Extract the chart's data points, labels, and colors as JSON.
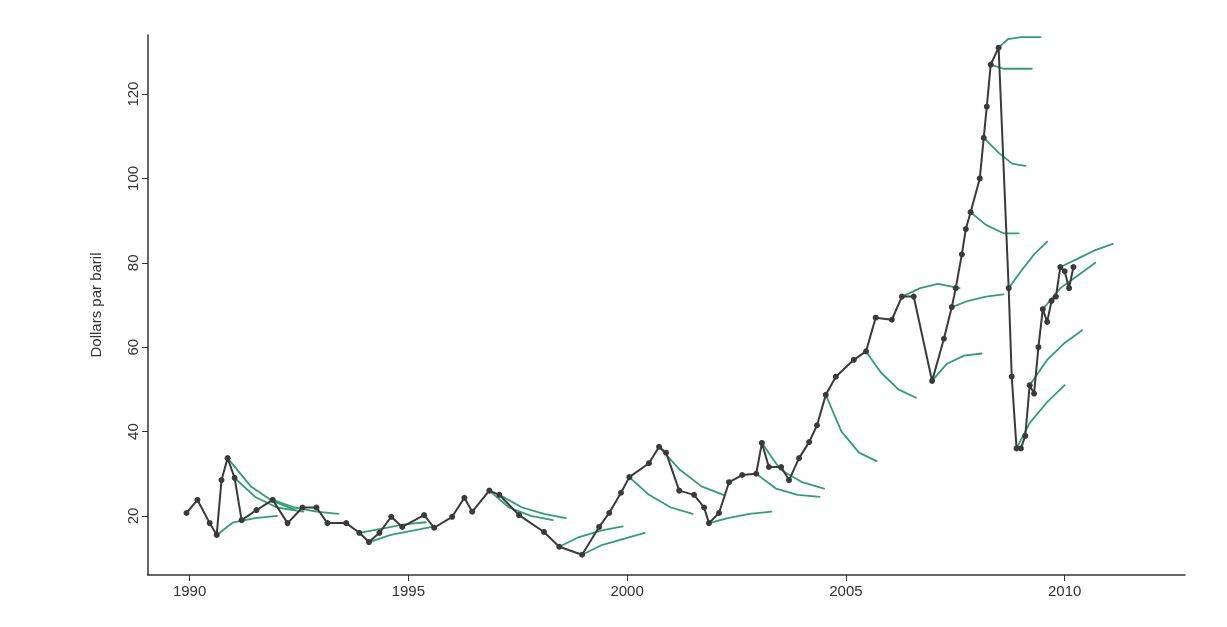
{
  "chart_data": {
    "type": "line",
    "ylabel": "Dollars par baril",
    "xlim": [
      1989.05,
      2012.75
    ],
    "xticks": [
      1990,
      1995,
      2000,
      2005,
      2010
    ],
    "ylim": [
      6,
      134
    ],
    "yticks": [
      20,
      40,
      60,
      80,
      100,
      120
    ],
    "grid": false,
    "line_style": "solid",
    "series": [
      {
        "color": "#3a3a3a",
        "marker": "circle",
        "x": [
          1989.93,
          1990.18,
          1990.46,
          1990.62,
          1990.73,
          1990.87,
          1991.03,
          1991.19,
          1991.53,
          1991.9,
          1992.24,
          1992.58,
          1992.9,
          1993.15,
          1993.58,
          1993.88,
          1994.1,
          1994.34,
          1994.61,
          1994.86,
          1995.36,
          1995.59,
          1996.0,
          1996.28,
          1996.46,
          1996.85,
          1997.08,
          1997.53,
          1998.1,
          1998.45,
          1998.97,
          1999.36,
          1999.59,
          1999.86,
          2000.05,
          2000.5,
          2000.73,
          2000.89,
          2001.19,
          2001.53,
          2001.76,
          2001.87,
          2002.1,
          2002.33,
          2002.63,
          2002.95,
          2003.08,
          2003.24,
          2003.52,
          2003.7,
          2003.93,
          2004.16,
          2004.34,
          2004.54,
          2004.77,
          2005.18,
          2005.46,
          2005.68,
          2006.05,
          2006.28,
          2006.55,
          2006.97,
          2007.24,
          2007.42,
          2007.51,
          2007.65,
          2007.74,
          2007.85,
          2008.06,
          2008.15,
          2008.22,
          2008.31,
          2008.49,
          2008.72,
          2008.79,
          2008.9,
          2009.0,
          2009.1,
          2009.2,
          2009.3,
          2009.4,
          2009.5,
          2009.6,
          2009.7,
          2009.8,
          2009.9,
          2010.0,
          2010.1,
          2010.2
        ],
        "values": [
          20.7,
          23.8,
          18.3,
          15.5,
          28.5,
          33.7,
          29,
          19,
          21.4,
          23.8,
          18.3,
          22,
          22,
          18.3,
          18.3,
          16,
          13.8,
          16,
          19.8,
          17.4,
          20.2,
          17.2,
          19.8,
          24.3,
          21,
          26,
          25,
          20.2,
          16.2,
          12.7,
          10.8,
          17.4,
          20.7,
          25.5,
          29.2,
          32.5,
          36.4,
          35,
          26,
          25,
          22,
          18.3,
          20.7,
          28,
          29.7,
          30,
          37.3,
          31.6,
          31.6,
          28.5,
          33.7,
          37.5,
          41.5,
          48.7,
          53,
          57,
          59,
          67,
          66.5,
          72,
          72,
          52,
          62,
          69.5,
          74,
          82,
          88,
          92,
          100,
          109.6,
          117,
          127,
          131,
          74,
          53,
          36,
          36,
          39,
          51,
          49,
          60,
          69,
          66,
          71,
          72,
          79,
          78,
          74,
          79
        ]
      },
      {
        "color": "#2e9e7a",
        "marker": "none",
        "x": [
          1990.87,
          1991.4,
          1991.9,
          1992.4
        ],
        "values": [
          33.7,
          27,
          23.5,
          21.5
        ]
      },
      {
        "color": "#2e9e7a",
        "marker": "none",
        "x": [
          1991.03,
          1991.5,
          1992,
          1992.6
        ],
        "values": [
          29,
          24.5,
          22,
          21
        ]
      },
      {
        "color": "#2e9e7a",
        "marker": "none",
        "x": [
          1990.62,
          1991,
          1991.5,
          1992
        ],
        "values": [
          15.5,
          18.5,
          19.5,
          20
        ]
      },
      {
        "color": "#2e9e7a",
        "marker": "none",
        "x": [
          1991.9,
          1992.4,
          1992.9,
          1993.4
        ],
        "values": [
          23.8,
          22,
          21,
          20.5
        ]
      },
      {
        "color": "#2e9e7a",
        "marker": "none",
        "x": [
          1993.88,
          1994.4,
          1994.9,
          1995.4
        ],
        "values": [
          16,
          17,
          18,
          18.5
        ]
      },
      {
        "color": "#2e9e7a",
        "marker": "none",
        "x": [
          1994.1,
          1994.6,
          1995.1,
          1995.6
        ],
        "values": [
          13.8,
          15.5,
          16.5,
          17.5
        ]
      },
      {
        "color": "#2e9e7a",
        "marker": "none",
        "x": [
          1996.85,
          1997.3,
          1997.8,
          1998.3
        ],
        "values": [
          26,
          22,
          20,
          19
        ]
      },
      {
        "color": "#2e9e7a",
        "marker": "none",
        "x": [
          1997.08,
          1997.6,
          1998.1,
          1998.6
        ],
        "values": [
          25,
          22,
          20.5,
          19.5
        ]
      },
      {
        "color": "#2e9e7a",
        "marker": "none",
        "x": [
          1998.45,
          1998.9,
          1999.4,
          1999.9
        ],
        "values": [
          12.7,
          15,
          16.5,
          17.5
        ]
      },
      {
        "color": "#2e9e7a",
        "marker": "none",
        "x": [
          1998.97,
          1999.4,
          1999.9,
          2000.4
        ],
        "values": [
          10.8,
          13,
          14.5,
          16
        ]
      },
      {
        "color": "#2e9e7a",
        "marker": "none",
        "x": [
          2000.05,
          2000.5,
          2001,
          2001.5
        ],
        "values": [
          29.2,
          25,
          22,
          20.5
        ]
      },
      {
        "color": "#2e9e7a",
        "marker": "none",
        "x": [
          2000.73,
          2001.2,
          2001.7,
          2002.2
        ],
        "values": [
          36.4,
          31,
          27,
          25
        ]
      },
      {
        "color": "#2e9e7a",
        "marker": "none",
        "x": [
          2001.87,
          2002.3,
          2002.8,
          2003.3
        ],
        "values": [
          18.3,
          19.5,
          20.5,
          21
        ]
      },
      {
        "color": "#2e9e7a",
        "marker": "none",
        "x": [
          2002.95,
          2003.4,
          2003.9,
          2004.4
        ],
        "values": [
          30,
          26.5,
          25,
          24.5
        ]
      },
      {
        "color": "#2e9e7a",
        "marker": "none",
        "x": [
          2003.08,
          2003.5,
          2004,
          2004.5
        ],
        "values": [
          37.3,
          31,
          28,
          26.5
        ]
      },
      {
        "color": "#2e9e7a",
        "marker": "none",
        "x": [
          2004.54,
          2004.9,
          2005.3,
          2005.7
        ],
        "values": [
          48.7,
          40,
          35,
          33
        ]
      },
      {
        "color": "#2e9e7a",
        "marker": "none",
        "x": [
          2005.46,
          2005.8,
          2006.2,
          2006.6
        ],
        "values": [
          59,
          54,
          50,
          48
        ]
      },
      {
        "color": "#2e9e7a",
        "marker": "none",
        "x": [
          2006.28,
          2006.7,
          2007.1,
          2007.6
        ],
        "values": [
          72,
          74,
          75,
          74
        ]
      },
      {
        "color": "#2e9e7a",
        "marker": "none",
        "x": [
          2006.97,
          2007.3,
          2007.7,
          2008.1
        ],
        "values": [
          52,
          56,
          58,
          58.5
        ]
      },
      {
        "color": "#2e9e7a",
        "marker": "none",
        "x": [
          2007.42,
          2007.8,
          2008.2,
          2008.6
        ],
        "values": [
          69.5,
          71,
          72,
          72.5
        ]
      },
      {
        "color": "#2e9e7a",
        "marker": "none",
        "x": [
          2007.85,
          2008.2,
          2008.6,
          2008.95
        ],
        "values": [
          92,
          89,
          87,
          87
        ]
      },
      {
        "color": "#2e9e7a",
        "marker": "none",
        "x": [
          2008.15,
          2008.5,
          2008.8,
          2009.1
        ],
        "values": [
          109.6,
          106,
          103.5,
          103
        ]
      },
      {
        "color": "#2e9e7a",
        "marker": "none",
        "x": [
          2008.31,
          2008.6,
          2008.9,
          2009.25
        ],
        "values": [
          127,
          126,
          126,
          126
        ]
      },
      {
        "color": "#2e9e7a",
        "marker": "none",
        "x": [
          2008.49,
          2008.7,
          2009,
          2009.45
        ],
        "values": [
          131,
          133,
          133.5,
          133.5
        ]
      },
      {
        "color": "#2e9e7a",
        "marker": "none",
        "x": [
          2008.72,
          2009.0,
          2009.3,
          2009.6
        ],
        "values": [
          74,
          78,
          82,
          85
        ]
      },
      {
        "color": "#2e9e7a",
        "marker": "none",
        "x": [
          2008.9,
          2009.2,
          2009.6,
          2010
        ],
        "values": [
          36,
          42,
          47,
          51
        ]
      },
      {
        "color": "#2e9e7a",
        "marker": "none",
        "x": [
          2009.2,
          2009.6,
          2010,
          2010.4
        ],
        "values": [
          51,
          57,
          61,
          64
        ]
      },
      {
        "color": "#2e9e7a",
        "marker": "none",
        "x": [
          2009.5,
          2009.9,
          2010.3,
          2010.7
        ],
        "values": [
          69,
          74,
          77,
          80
        ]
      },
      {
        "color": "#2e9e7a",
        "marker": "none",
        "x": [
          2009.9,
          2010.3,
          2010.7,
          2011.1
        ],
        "values": [
          79,
          81,
          83,
          84.5
        ]
      }
    ]
  }
}
